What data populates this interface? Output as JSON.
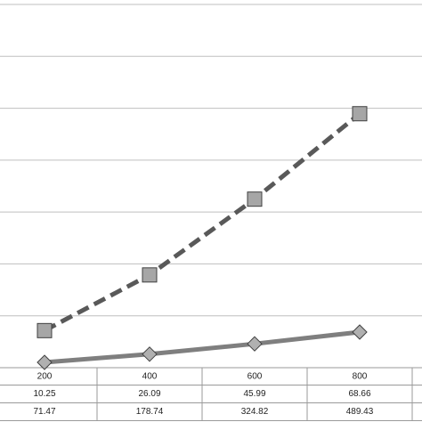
{
  "chart_data": {
    "type": "line",
    "categories": [
      "200",
      "400",
      "600",
      "800"
    ],
    "series": [
      {
        "color": "#7f7f7f",
        "dash": false,
        "marker": "diamond",
        "values": [
          10.25,
          26.09,
          45.99,
          68.66
        ]
      },
      {
        "color": "#595959",
        "dash": true,
        "marker": "square",
        "values": [
          71.47,
          178.74,
          324.82,
          489.43
        ]
      }
    ],
    "ylim": [
      0,
      700
    ],
    "yticks": [
      0,
      100,
      200,
      300,
      400,
      500,
      600,
      700
    ],
    "grid": true,
    "data_table": true
  }
}
